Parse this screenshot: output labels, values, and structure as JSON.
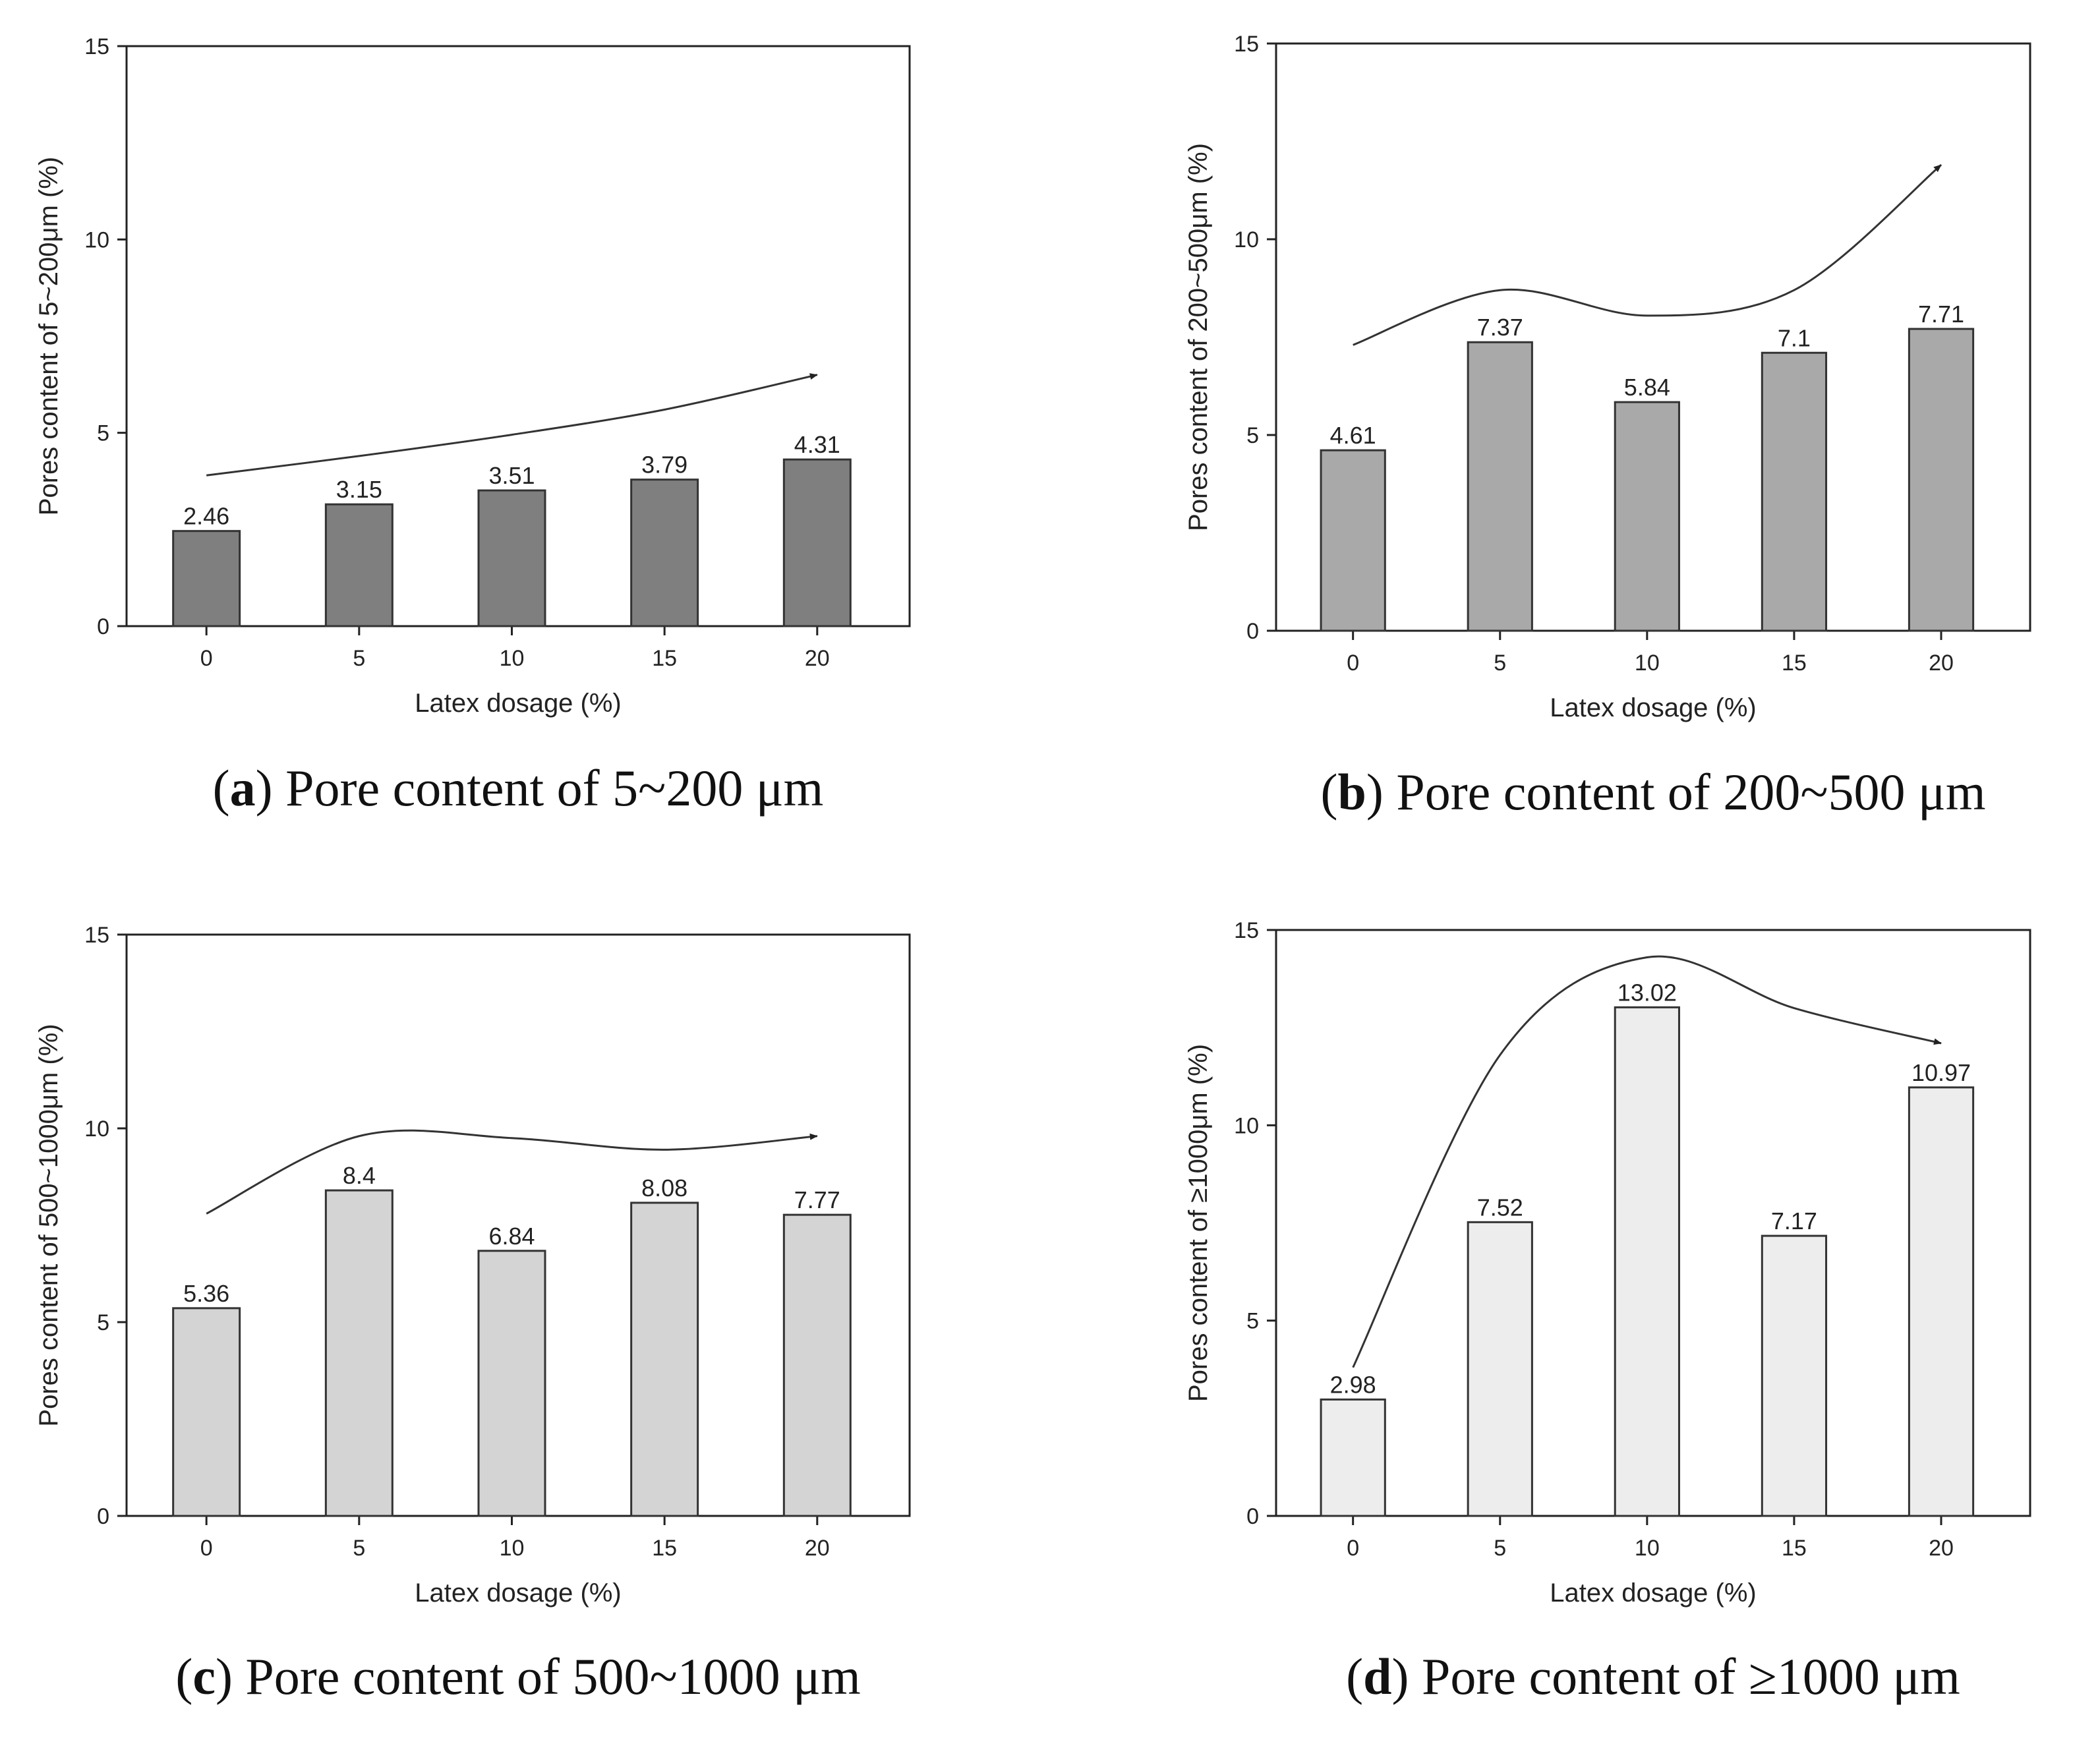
{
  "chart_data": [
    {
      "type": "bar",
      "panel": "a",
      "caption": {
        "open": "(",
        "letter": "a",
        "close": ")",
        "text": " Pore content of 5~200 μm"
      },
      "categories": [
        "0",
        "5",
        "10",
        "15",
        "20"
      ],
      "values": [
        2.46,
        3.15,
        3.51,
        3.79,
        4.31
      ],
      "value_labels": [
        "2.46",
        "3.15",
        "3.51",
        "3.79",
        "4.31"
      ],
      "xlabel": "Latex dosage (%)",
      "ylabel": "Pores content of 5~200μm (%)",
      "ylim": [
        0,
        15
      ],
      "yticks": [
        "0",
        "5",
        "10",
        "15"
      ],
      "bar_color": "#7f7f7f",
      "trend_values": [
        3.9,
        4.4,
        4.95,
        5.6,
        6.5
      ]
    },
    {
      "type": "bar",
      "panel": "b",
      "caption": {
        "open": "(",
        "letter": "b",
        "close": ")",
        "text": " Pore content of 200~500 μm"
      },
      "categories": [
        "0",
        "5",
        "10",
        "15",
        "20"
      ],
      "values": [
        4.61,
        7.37,
        5.84,
        7.1,
        7.71
      ],
      "value_labels": [
        "4.61",
        "7.37",
        "5.84",
        "7.1",
        "7.71"
      ],
      "xlabel": "Latex dosage (%)",
      "ylabel": "Pores content of 200~500μm (%)",
      "ylim": [
        0,
        15
      ],
      "yticks": [
        "0",
        "5",
        "10",
        "15"
      ],
      "bar_color": "#a9a9a9",
      "trend_values": [
        7.3,
        8.7,
        8.05,
        8.7,
        11.9
      ]
    },
    {
      "type": "bar",
      "panel": "c",
      "caption": {
        "open": "(",
        "letter": "c",
        "close": ")",
        "text": " Pore content of 500~1000 μm"
      },
      "categories": [
        "0",
        "5",
        "10",
        "15",
        "20"
      ],
      "values": [
        5.36,
        8.4,
        6.84,
        8.08,
        7.77
      ],
      "value_labels": [
        "5.36",
        "8.4",
        "6.84",
        "8.08",
        "7.77"
      ],
      "xlabel": "Latex dosage (%)",
      "ylabel": "Pores content of 500~1000μm (%)",
      "ylim": [
        0,
        15
      ],
      "yticks": [
        "0",
        "5",
        "10",
        "15"
      ],
      "bar_color": "#d4d4d4",
      "trend_values": [
        7.8,
        9.8,
        9.75,
        9.45,
        9.8
      ]
    },
    {
      "type": "bar",
      "panel": "d",
      "caption": {
        "open": "(",
        "letter": "d",
        "close": ")",
        "text": " Pore content of ≥1000 μm"
      },
      "categories": [
        "0",
        "5",
        "10",
        "15",
        "20"
      ],
      "values": [
        2.98,
        7.52,
        13.02,
        7.17,
        10.97
      ],
      "value_labels": [
        "2.98",
        "7.52",
        "13.02",
        "7.17",
        "10.97"
      ],
      "xlabel": "Latex dosage (%)",
      "ylabel": "Pores content of ≥1000μm (%)",
      "ylim": [
        0,
        15
      ],
      "yticks": [
        "0",
        "5",
        "10",
        "15"
      ],
      "bar_color": "#ededed",
      "trend_values": [
        3.8,
        11.8,
        14.3,
        13.0,
        12.1
      ]
    }
  ]
}
